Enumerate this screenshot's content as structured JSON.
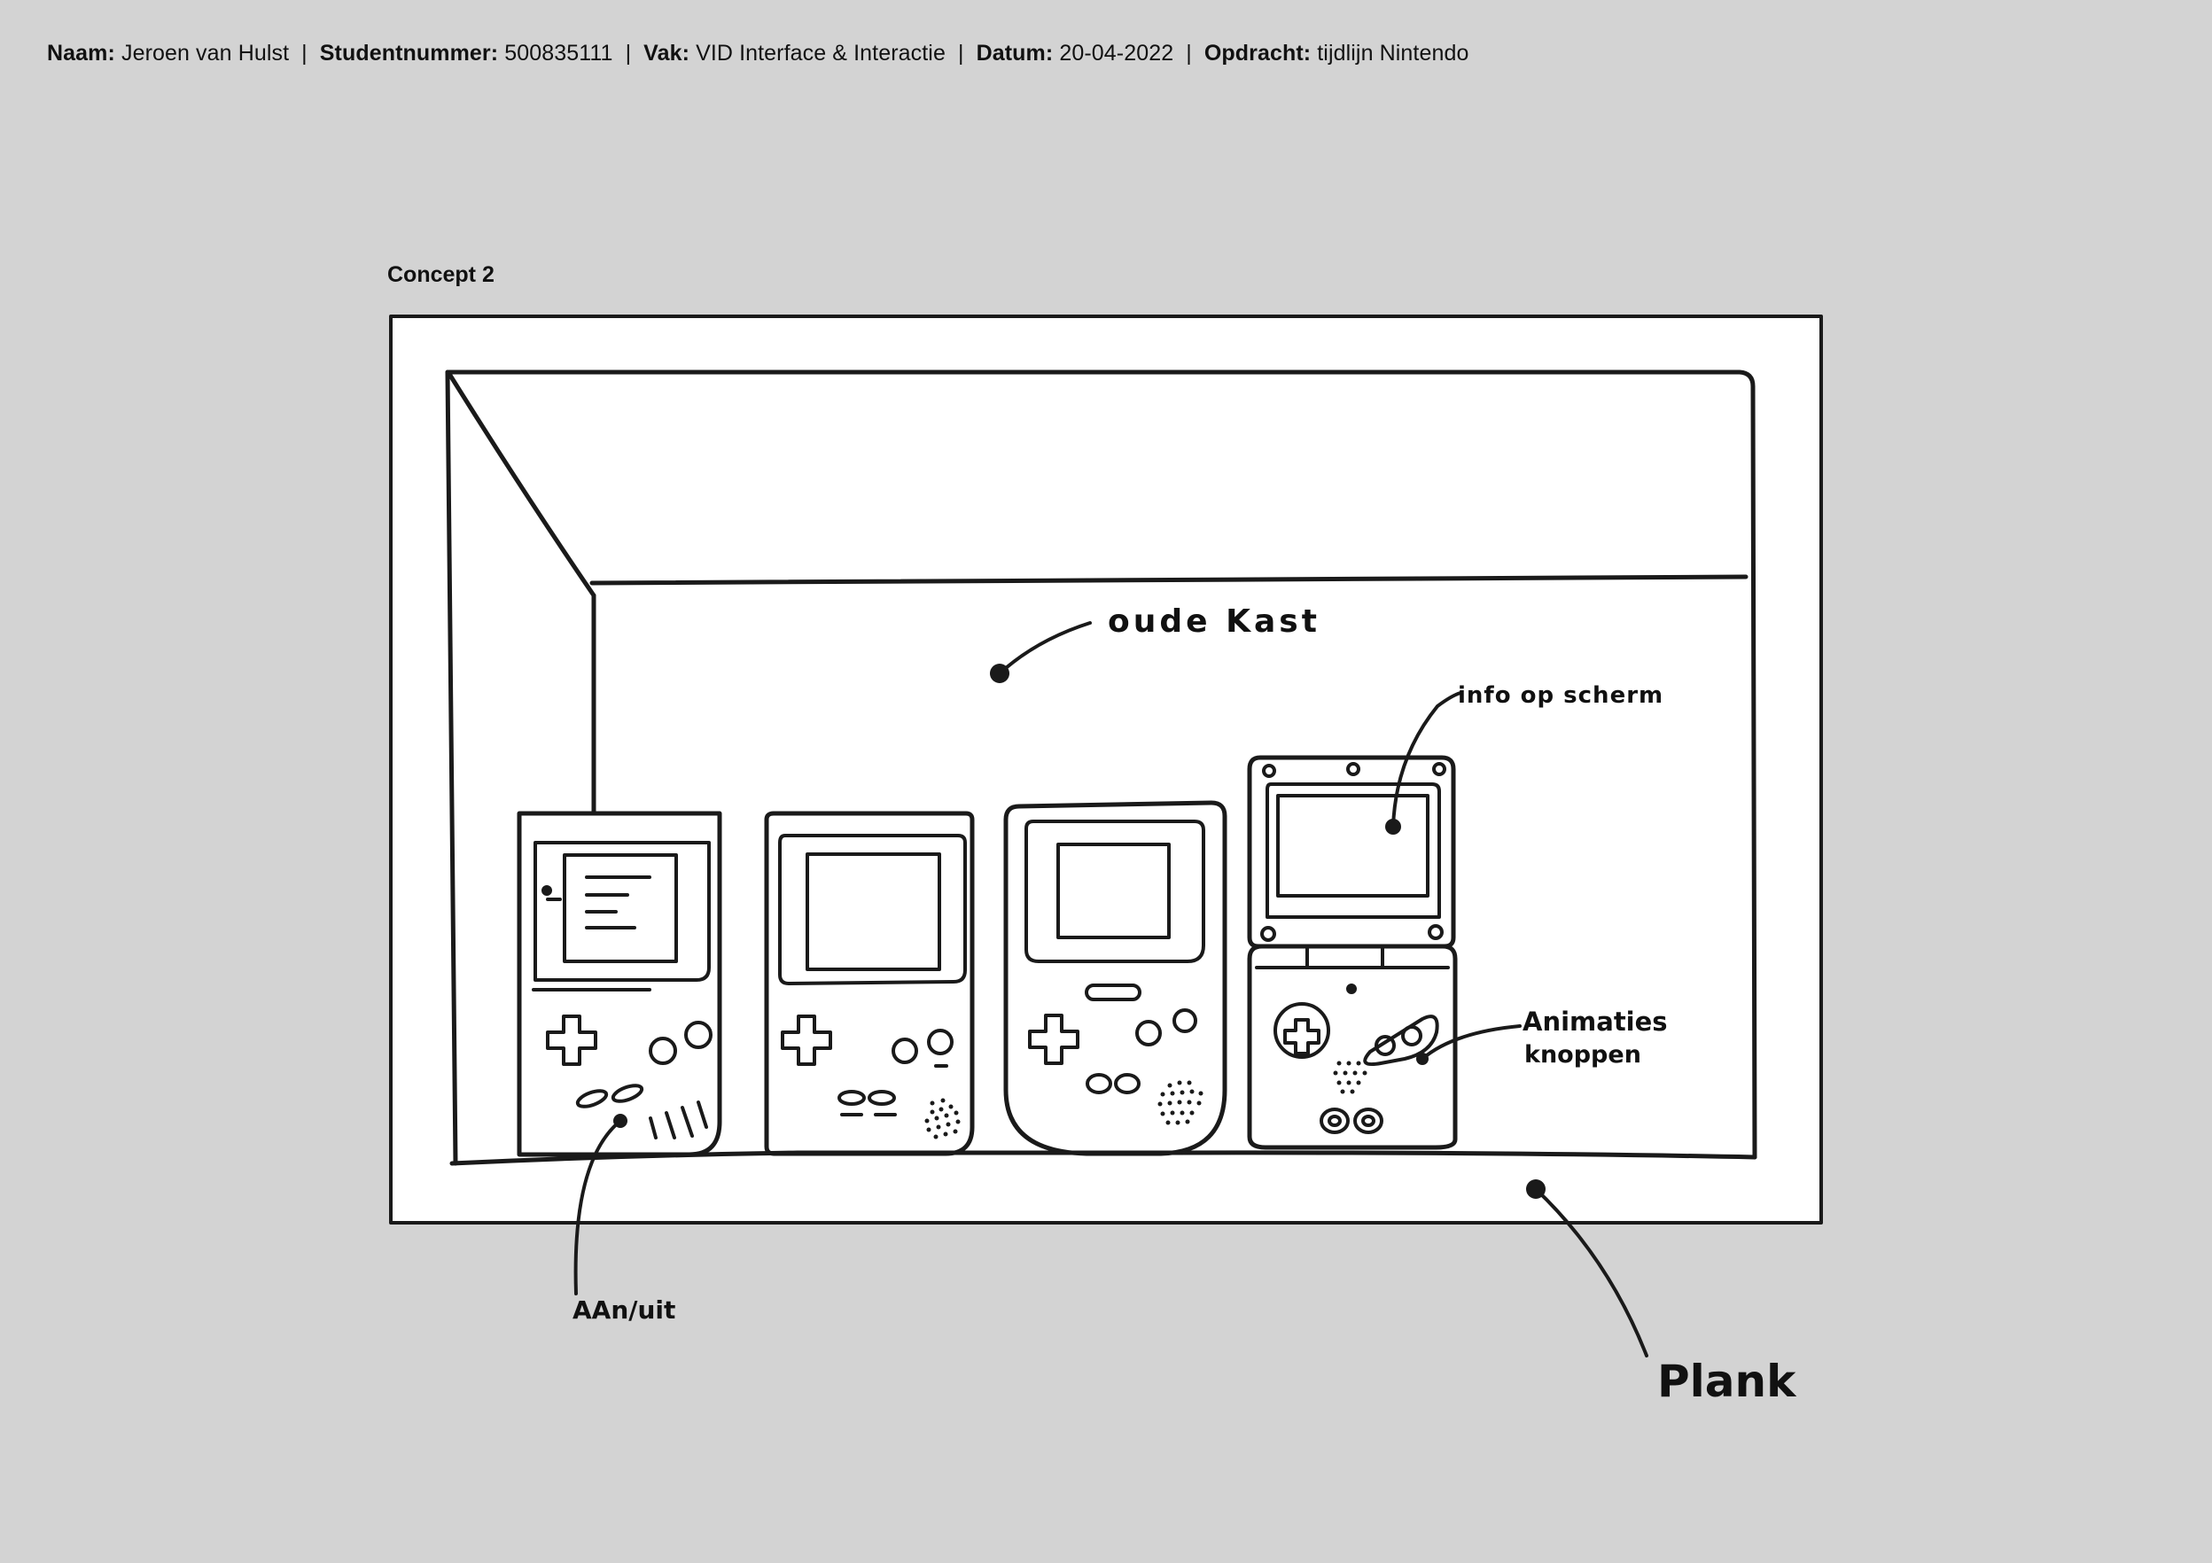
{
  "header": {
    "name_label": "Naam:",
    "name_value": "Jeroen van Hulst",
    "student_label": "Studentnummer:",
    "student_value": "500835111",
    "course_label": "Vak:",
    "course_value": "VID Interface & Interactie",
    "date_label": "Datum:",
    "date_value": "20-04-2022",
    "assignment_label": "Opdracht:",
    "assignment_value": "tijdlijn Nintendo",
    "separator": "|"
  },
  "concept_title": "Concept 2",
  "annotations": {
    "cabinet": "oude Kast",
    "screen_info": "info op scherm",
    "buttons_line1": "Animaties",
    "buttons_line2": "knoppen",
    "power": "AAn/uit",
    "shelf": "Plank"
  }
}
